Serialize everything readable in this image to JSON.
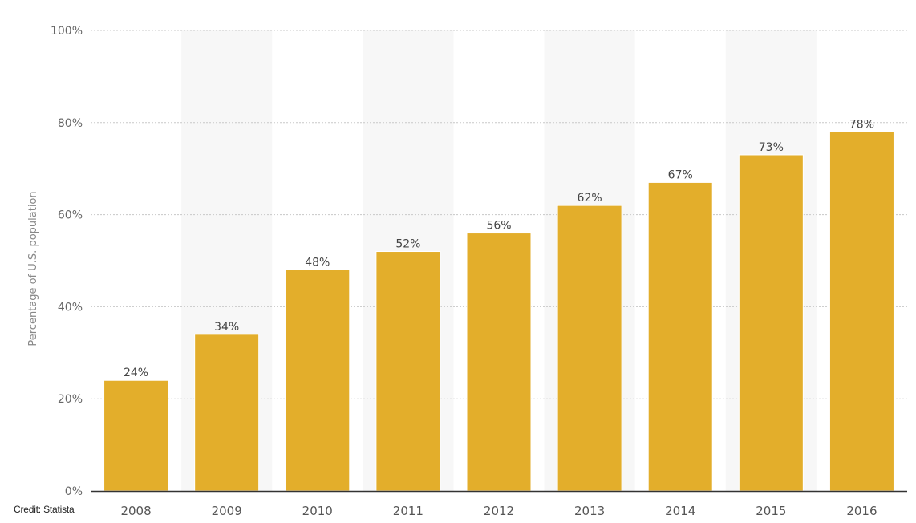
{
  "chart_data": {
    "type": "bar",
    "categories": [
      "2008",
      "2009",
      "2010",
      "2011",
      "2012",
      "2013",
      "2014",
      "2015",
      "2016"
    ],
    "values": [
      24,
      34,
      48,
      52,
      56,
      62,
      67,
      73,
      78
    ],
    "data_labels": [
      "24%",
      "34%",
      "48%",
      "52%",
      "56%",
      "62%",
      "67%",
      "73%",
      "78%"
    ],
    "title": "",
    "xlabel": "",
    "ylabel": "Percentage of U.S. population",
    "ylim": [
      0,
      100
    ],
    "yticks": [
      0,
      20,
      40,
      60,
      80,
      100
    ],
    "ytick_labels": [
      "0%",
      "20%",
      "40%",
      "60%",
      "80%",
      "100%"
    ],
    "grid": true,
    "legend": "none",
    "colors": {
      "bar": "#e3ae2b",
      "bar_edge": "#ffffff",
      "band": "#f7f7f7",
      "grid": "#c8c8c8",
      "axis": "#333333"
    }
  },
  "footer": {
    "credit": "Credit: Statista"
  }
}
